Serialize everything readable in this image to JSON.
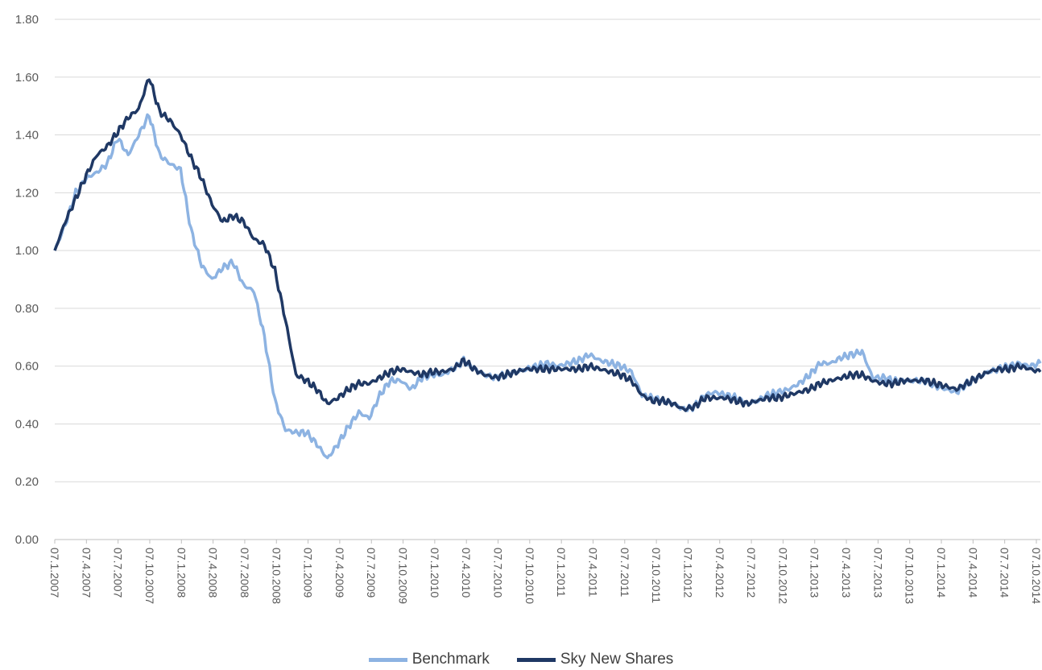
{
  "chart_data": {
    "type": "line",
    "title": "",
    "xlabel": "",
    "ylabel": "",
    "ylim": [
      0,
      1.8
    ],
    "yticks": [
      "0.00",
      "0.20",
      "0.40",
      "0.60",
      "0.80",
      "1.00",
      "1.20",
      "1.40",
      "1.60",
      "1.80"
    ],
    "xticks": [
      "07.1.2007",
      "07.4.2007",
      "07.7.2007",
      "07.10.2007",
      "07.1.2008",
      "07.4.2008",
      "07.7.2008",
      "07.10.2008",
      "07.1.2009",
      "07.4.2009",
      "07.7.2009",
      "07.10.2009",
      "07.1.2010",
      "07.4.2010",
      "07.7.2010",
      "07.10.2010",
      "07.1.2011",
      "07.4.2011",
      "07.7.2011",
      "07.10.2011",
      "07.1.2012",
      "07.4.2012",
      "07.7.2012",
      "07.10.2012",
      "07.1.2013",
      "07.4.2013",
      "07.7.2013",
      "07.10.2013",
      "07.1.2014",
      "07.4.2014",
      "07.7.2014",
      "07.10.2014"
    ],
    "grid": "horizontal",
    "legend_position": "bottom",
    "x": [
      "2007-01",
      "2007-02",
      "2007-03",
      "2007-04",
      "2007-05",
      "2007-06",
      "2007-07",
      "2007-08",
      "2007-09",
      "2007-10",
      "2007-11",
      "2007-12",
      "2008-01",
      "2008-02",
      "2008-03",
      "2008-04",
      "2008-05",
      "2008-06",
      "2008-07",
      "2008-08",
      "2008-09",
      "2008-10",
      "2008-11",
      "2008-12",
      "2009-01",
      "2009-02",
      "2009-03",
      "2009-04",
      "2009-05",
      "2009-06",
      "2009-07",
      "2009-08",
      "2009-09",
      "2009-10",
      "2009-11",
      "2009-12",
      "2010-01",
      "2010-02",
      "2010-03",
      "2010-04",
      "2010-05",
      "2010-06",
      "2010-07",
      "2010-08",
      "2010-09",
      "2010-10",
      "2010-11",
      "2010-12",
      "2011-01",
      "2011-02",
      "2011-03",
      "2011-04",
      "2011-05",
      "2011-06",
      "2011-07",
      "2011-08",
      "2011-09",
      "2011-10",
      "2011-11",
      "2011-12",
      "2012-01",
      "2012-02",
      "2012-03",
      "2012-04",
      "2012-05",
      "2012-06",
      "2012-07",
      "2012-08",
      "2012-09",
      "2012-10",
      "2012-11",
      "2012-12",
      "2013-01",
      "2013-02",
      "2013-03",
      "2013-04",
      "2013-05",
      "2013-06",
      "2013-07",
      "2013-08",
      "2013-09",
      "2013-10",
      "2013-11",
      "2013-12",
      "2014-01",
      "2014-02",
      "2014-03",
      "2014-04",
      "2014-05",
      "2014-06",
      "2014-07",
      "2014-08",
      "2014-09",
      "2014-10",
      "2014-11"
    ],
    "series": [
      {
        "name": "Benchmark",
        "color": "#8DB3E2",
        "values": [
          1.0,
          1.09,
          1.2,
          1.25,
          1.27,
          1.3,
          1.39,
          1.33,
          1.4,
          1.47,
          1.33,
          1.3,
          1.28,
          1.07,
          0.95,
          0.9,
          0.94,
          0.96,
          0.88,
          0.86,
          0.7,
          0.48,
          0.38,
          0.37,
          0.37,
          0.33,
          0.28,
          0.33,
          0.39,
          0.44,
          0.42,
          0.5,
          0.55,
          0.55,
          0.52,
          0.56,
          0.57,
          0.57,
          0.59,
          0.62,
          0.59,
          0.57,
          0.56,
          0.57,
          0.58,
          0.59,
          0.6,
          0.61,
          0.6,
          0.61,
          0.62,
          0.64,
          0.62,
          0.61,
          0.6,
          0.58,
          0.5,
          0.49,
          0.48,
          0.47,
          0.45,
          0.46,
          0.5,
          0.51,
          0.5,
          0.49,
          0.47,
          0.48,
          0.5,
          0.51,
          0.52,
          0.54,
          0.57,
          0.61,
          0.61,
          0.63,
          0.64,
          0.65,
          0.56,
          0.56,
          0.55,
          0.55,
          0.55,
          0.55,
          0.53,
          0.52,
          0.51,
          0.54,
          0.56,
          0.58,
          0.59,
          0.6,
          0.61,
          0.6,
          0.61
        ]
      },
      {
        "name": "Sky New Shares",
        "color": "#1F3864",
        "values": [
          1.0,
          1.1,
          1.18,
          1.26,
          1.33,
          1.36,
          1.41,
          1.46,
          1.49,
          1.6,
          1.48,
          1.45,
          1.4,
          1.32,
          1.25,
          1.16,
          1.1,
          1.12,
          1.1,
          1.04,
          1.02,
          0.93,
          0.76,
          0.57,
          0.55,
          0.52,
          0.47,
          0.49,
          0.52,
          0.54,
          0.54,
          0.56,
          0.58,
          0.59,
          0.58,
          0.57,
          0.58,
          0.58,
          0.59,
          0.62,
          0.59,
          0.57,
          0.56,
          0.57,
          0.58,
          0.59,
          0.59,
          0.59,
          0.59,
          0.59,
          0.59,
          0.6,
          0.59,
          0.58,
          0.57,
          0.55,
          0.5,
          0.48,
          0.48,
          0.47,
          0.45,
          0.46,
          0.49,
          0.49,
          0.49,
          0.48,
          0.47,
          0.48,
          0.49,
          0.49,
          0.5,
          0.51,
          0.52,
          0.54,
          0.55,
          0.56,
          0.57,
          0.57,
          0.55,
          0.54,
          0.54,
          0.55,
          0.55,
          0.55,
          0.54,
          0.53,
          0.52,
          0.54,
          0.56,
          0.58,
          0.59,
          0.59,
          0.6,
          0.59,
          0.58
        ]
      }
    ]
  }
}
